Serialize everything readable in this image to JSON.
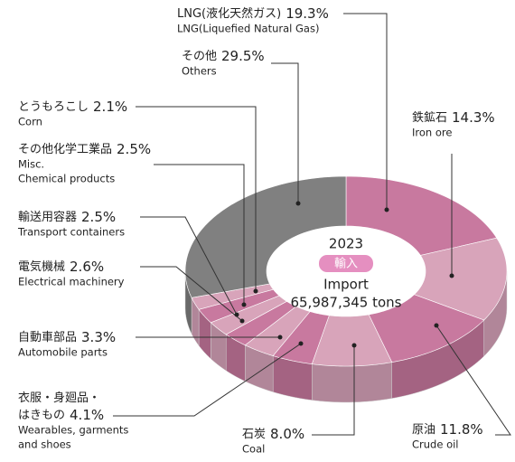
{
  "chart_data": {
    "type": "pie",
    "donut": true,
    "three_d": true,
    "year": "2023",
    "badge": "輸入",
    "center_title": "Import",
    "total": "65,987,345 tons",
    "labels": [
      {
        "ja": [
          "LNG(液化天然ガス)"
        ],
        "en": [
          "LNG(Liquefied Natural Gas)"
        ]
      },
      {
        "ja": [
          "鉄鉱石"
        ],
        "en": [
          "Iron ore"
        ]
      },
      {
        "ja": [
          "原油"
        ],
        "en": [
          "Crude oil"
        ]
      },
      {
        "ja": [
          "石炭"
        ],
        "en": [
          "Coal"
        ]
      },
      {
        "ja": [
          "衣服・身廻品・",
          "はきもの"
        ],
        "en": [
          "Wearables, garments",
          "and shoes"
        ]
      },
      {
        "ja": [
          "自動車部品"
        ],
        "en": [
          "Automobile parts"
        ]
      },
      {
        "ja": [
          "電気機械"
        ],
        "en": [
          "Electrical machinery"
        ]
      },
      {
        "ja": [
          "輸送用容器"
        ],
        "en": [
          "Transport containers"
        ]
      },
      {
        "ja": [
          "その他化学工業品"
        ],
        "en": [
          "Misc.",
          "Chemical products"
        ]
      },
      {
        "ja": [
          "とうもろこし"
        ],
        "en": [
          "Corn"
        ]
      },
      {
        "ja": [
          "その他"
        ],
        "en": [
          "Others"
        ]
      }
    ],
    "values": [
      19.3,
      14.3,
      11.8,
      8.0,
      4.1,
      3.3,
      2.6,
      2.5,
      2.5,
      2.1,
      29.5
    ],
    "value_labels": [
      "19.3%",
      "14.3%",
      "11.8%",
      "8.0%",
      "4.1%",
      "3.3%",
      "2.6%",
      "2.5%",
      "2.5%",
      "2.1%",
      "29.5%"
    ],
    "colors": [
      "#c8799f",
      "#d8a4ba",
      "#c8799f",
      "#d8a4ba",
      "#c8799f",
      "#d8a4ba",
      "#c8799f",
      "#d8a4ba",
      "#c8799f",
      "#d8a4ba",
      "#808080"
    ]
  }
}
